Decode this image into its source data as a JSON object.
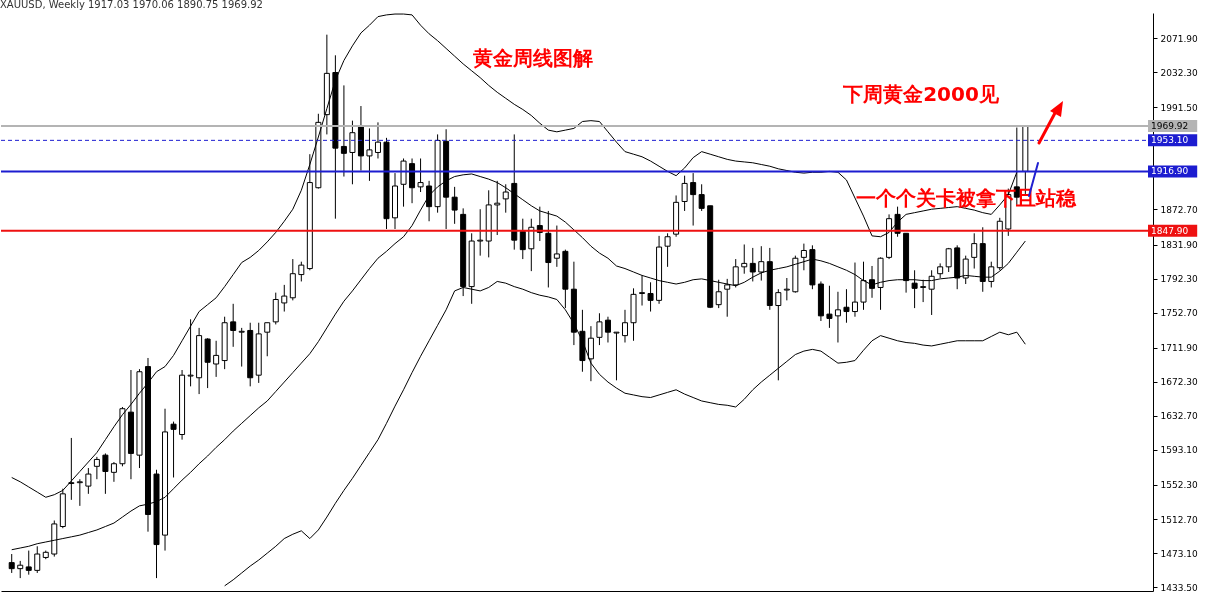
{
  "chart_data": {
    "type": "candlestick",
    "title": "XAUUSD, Weekly  1917.03 1970.06 1890.75 1969.92",
    "categories": [
      null,
      null,
      null,
      null,
      null,
      null,
      null,
      null,
      null,
      null,
      null,
      null,
      null,
      null,
      null,
      null,
      null,
      null,
      null,
      null,
      null,
      null,
      null,
      null,
      null,
      null,
      null,
      null,
      null,
      null,
      null,
      null,
      null,
      null,
      null,
      null,
      null,
      null,
      null,
      null,
      null,
      null,
      null,
      null,
      null,
      null,
      null,
      null,
      null,
      null,
      null,
      null,
      null,
      null,
      null,
      null,
      null,
      null,
      null,
      null,
      null,
      null,
      null,
      null,
      null,
      null,
      null,
      null,
      null,
      null,
      null,
      null,
      null,
      null,
      null,
      null,
      null,
      null,
      null,
      null,
      null,
      null,
      null,
      null,
      null,
      null,
      null,
      null,
      null,
      null,
      null,
      null,
      null,
      null,
      null,
      null,
      null,
      null,
      null,
      null,
      null,
      null,
      null,
      null,
      null,
      null,
      null,
      null,
      null,
      null,
      null,
      null,
      null,
      null,
      null,
      null,
      null,
      null,
      null,
      null
    ],
    "ohlc": [
      [
        1462,
        1472,
        1450,
        1455
      ],
      [
        1455,
        1464,
        1444,
        1459
      ],
      [
        1457,
        1476,
        1448,
        1453
      ],
      [
        1453,
        1481,
        1450,
        1472
      ],
      [
        1468,
        1476,
        1466,
        1474
      ],
      [
        1472,
        1511,
        1469,
        1507
      ],
      [
        1504,
        1548,
        1502,
        1542
      ],
      [
        1554,
        1607,
        1535,
        1555
      ],
      [
        1555,
        1559,
        1528,
        1556
      ],
      [
        1551,
        1572,
        1542,
        1565
      ],
      [
        1574,
        1585,
        1559,
        1582
      ],
      [
        1587,
        1589,
        1542,
        1568
      ],
      [
        1567,
        1579,
        1556,
        1577
      ],
      [
        1577,
        1643,
        1574,
        1641
      ],
      [
        1637,
        1686,
        1559,
        1589
      ],
      [
        1587,
        1687,
        1572,
        1684
      ],
      [
        1690,
        1700,
        1498,
        1518
      ],
      [
        1565,
        1570,
        1444,
        1483
      ],
      [
        1494,
        1641,
        1476,
        1614
      ],
      [
        1623,
        1626,
        1561,
        1617
      ],
      [
        1611,
        1686,
        1605,
        1680
      ],
      [
        1679,
        1745,
        1667,
        1680
      ],
      [
        1677,
        1735,
        1658,
        1726
      ],
      [
        1722,
        1723,
        1665,
        1695
      ],
      [
        1693,
        1720,
        1678,
        1703
      ],
      [
        1697,
        1748,
        1687,
        1741
      ],
      [
        1742,
        1763,
        1713,
        1732
      ],
      [
        1730,
        1735,
        1690,
        1731
      ],
      [
        1732,
        1741,
        1667,
        1677
      ],
      [
        1680,
        1741,
        1671,
        1728
      ],
      [
        1730,
        1741,
        1702,
        1741
      ],
      [
        1742,
        1776,
        1739,
        1768
      ],
      [
        1764,
        1785,
        1754,
        1772
      ],
      [
        1770,
        1815,
        1767,
        1798
      ],
      [
        1797,
        1812,
        1789,
        1808
      ],
      [
        1804,
        1937,
        1802,
        1904
      ],
      [
        1898,
        1984,
        1897,
        1974
      ],
      [
        1983,
        2076,
        1960,
        2031
      ],
      [
        2032,
        2052,
        1862,
        1944
      ],
      [
        1946,
        2017,
        1911,
        1938
      ],
      [
        1939,
        1976,
        1902,
        1962
      ],
      [
        1970,
        1993,
        1918,
        1935
      ],
      [
        1935,
        1967,
        1906,
        1942
      ],
      [
        1939,
        1974,
        1932,
        1951
      ],
      [
        1951,
        1956,
        1850,
        1862
      ],
      [
        1863,
        1915,
        1850,
        1900
      ],
      [
        1902,
        1932,
        1876,
        1929
      ],
      [
        1926,
        1932,
        1880,
        1898
      ],
      [
        1899,
        1932,
        1893,
        1904
      ],
      [
        1900,
        1906,
        1859,
        1876
      ],
      [
        1876,
        1960,
        1869,
        1953
      ],
      [
        1952,
        1966,
        1850,
        1887
      ],
      [
        1887,
        1899,
        1856,
        1872
      ],
      [
        1867,
        1874,
        1772,
        1783
      ],
      [
        1783,
        1845,
        1763,
        1836
      ],
      [
        1836,
        1873,
        1819,
        1837
      ],
      [
        1836,
        1895,
        1817,
        1878
      ],
      [
        1878,
        1906,
        1843,
        1880
      ],
      [
        1885,
        1902,
        1869,
        1893
      ],
      [
        1903,
        1960,
        1826,
        1837
      ],
      [
        1847,
        1862,
        1815,
        1826
      ],
      [
        1827,
        1862,
        1801,
        1852
      ],
      [
        1854,
        1876,
        1836,
        1846
      ],
      [
        1845,
        1871,
        1782,
        1811
      ],
      [
        1816,
        1854,
        1806,
        1821
      ],
      [
        1824,
        1826,
        1758,
        1780
      ],
      [
        1780,
        1812,
        1715,
        1730
      ],
      [
        1731,
        1756,
        1684,
        1697
      ],
      [
        1699,
        1737,
        1673,
        1723
      ],
      [
        1724,
        1752,
        1715,
        1742
      ],
      [
        1744,
        1748,
        1718,
        1730
      ],
      [
        1729,
        1730,
        1674,
        1730
      ],
      [
        1726,
        1756,
        1718,
        1741
      ],
      [
        1741,
        1781,
        1720,
        1774
      ],
      [
        1775,
        1796,
        1761,
        1776
      ],
      [
        1775,
        1788,
        1754,
        1767
      ],
      [
        1767,
        1842,
        1763,
        1829
      ],
      [
        1830,
        1845,
        1806,
        1841
      ],
      [
        1844,
        1889,
        1841,
        1881
      ],
      [
        1882,
        1912,
        1871,
        1903
      ],
      [
        1904,
        1915,
        1854,
        1890
      ],
      [
        1890,
        1902,
        1871,
        1874
      ],
      [
        1877,
        1877,
        1758,
        1759
      ],
      [
        1762,
        1791,
        1758,
        1777
      ],
      [
        1780,
        1792,
        1748,
        1785
      ],
      [
        1785,
        1815,
        1782,
        1806
      ],
      [
        1806,
        1832,
        1798,
        1810
      ],
      [
        1810,
        1828,
        1789,
        1800
      ],
      [
        1800,
        1830,
        1790,
        1812
      ],
      [
        1812,
        1828,
        1756,
        1761
      ],
      [
        1761,
        1780,
        1674,
        1776
      ],
      [
        1779,
        1793,
        1767,
        1780
      ],
      [
        1777,
        1819,
        1776,
        1816
      ],
      [
        1817,
        1833,
        1802,
        1825
      ],
      [
        1826,
        1831,
        1780,
        1785
      ],
      [
        1786,
        1789,
        1743,
        1749
      ],
      [
        1751,
        1784,
        1735,
        1746
      ],
      [
        1749,
        1777,
        1718,
        1756
      ],
      [
        1759,
        1780,
        1741,
        1754
      ],
      [
        1754,
        1811,
        1748,
        1765
      ],
      [
        1765,
        1812,
        1756,
        1790
      ],
      [
        1791,
        1807,
        1770,
        1781
      ],
      [
        1782,
        1817,
        1756,
        1816
      ],
      [
        1817,
        1867,
        1815,
        1862
      ],
      [
        1867,
        1876,
        1841,
        1845
      ],
      [
        1845,
        1845,
        1776,
        1790
      ],
      [
        1787,
        1802,
        1758,
        1781
      ],
      [
        1782,
        1791,
        1765,
        1783
      ],
      [
        1780,
        1802,
        1750,
        1795
      ],
      [
        1798,
        1810,
        1793,
        1806
      ],
      [
        1806,
        1828,
        1800,
        1827
      ],
      [
        1828,
        1831,
        1780,
        1793
      ],
      [
        1793,
        1819,
        1786,
        1815
      ],
      [
        1817,
        1845,
        1804,
        1833
      ],
      [
        1833,
        1852,
        1777,
        1789
      ],
      [
        1789,
        1812,
        1782,
        1806
      ],
      [
        1805,
        1863,
        1802,
        1859
      ],
      [
        1850,
        1897,
        1842,
        1890
      ],
      [
        1899,
        1968,
        1878,
        1887
      ],
      [
        1917.03,
        1970.06,
        1890.75,
        1969.92
      ]
    ],
    "series": [
      {
        "type": "line",
        "color": "#000000",
        "values": [
          1561,
          1556,
          1550,
          1544,
          1538,
          1541,
          1546,
          1557,
          1568,
          1579,
          1590,
          1605,
          1620,
          1634,
          1646,
          1659,
          1671,
          1684,
          1690,
          1703,
          1720,
          1737,
          1754,
          1762,
          1770,
          1783,
          1797,
          1811,
          1817,
          1825,
          1835,
          1846,
          1859,
          1873,
          1895,
          1925,
          1957,
          1990,
          2023,
          2046,
          2063,
          2078,
          2087,
          2097,
          2099,
          2100,
          2100,
          2099,
          2087,
          2077,
          2069,
          2060,
          2051,
          2042,
          2034,
          2026,
          2017,
          2009,
          2002,
          1995,
          1989,
          1982,
          1973,
          1965,
          1963,
          1965,
          1967,
          1975,
          1976,
          1975,
          1963,
          1951,
          1940,
          1937,
          1934,
          1929,
          1923,
          1917,
          1912,
          1921,
          1933,
          1940,
          1937,
          1934,
          1931,
          1929,
          1928,
          1927,
          1925,
          1923,
          1920,
          1918,
          1916,
          1915,
          1916,
          1916,
          1917,
          1916,
          1907,
          1886,
          1865,
          1842,
          1841,
          1846,
          1858,
          1867,
          1869,
          1871,
          1873,
          1874,
          1875,
          1876,
          1874,
          1872,
          1869,
          1867,
          1878,
          1890,
          1916,
          null
        ]
      },
      {
        "type": "line",
        "color": "#000000",
        "values": [
          1477,
          1479,
          1481,
          1484,
          1486,
          1488,
          1490,
          1492,
          1494,
          1497,
          1500,
          1504,
          1508,
          1515,
          1522,
          1528,
          1530,
          1533,
          1538,
          1548,
          1558,
          1567,
          1577,
          1586,
          1596,
          1605,
          1615,
          1624,
          1633,
          1642,
          1650,
          1661,
          1672,
          1683,
          1694,
          1705,
          1719,
          1735,
          1751,
          1766,
          1778,
          1791,
          1804,
          1816,
          1824,
          1833,
          1841,
          1854,
          1872,
          1889,
          1899,
          1906,
          1911,
          1913,
          1914,
          1911,
          1908,
          1904,
          1898,
          1891,
          1884,
          1877,
          1871,
          1868,
          1865,
          1858,
          1849,
          1840,
          1830,
          1822,
          1816,
          1807,
          1804,
          1800,
          1796,
          1793,
          1790,
          1788,
          1786,
          1788,
          1791,
          1792,
          1790,
          1788,
          1786,
          1784,
          1788,
          1794,
          1799,
          1802,
          1804,
          1806,
          1809,
          1812,
          1815,
          1813,
          1810,
          1806,
          1802,
          1797,
          1790,
          1785,
          1788,
          1790,
          1791,
          1791,
          1791,
          1790,
          1790,
          1792,
          1793,
          1794,
          1796,
          1795,
          1794,
          1794,
          1801,
          1810,
          1823,
          1836
        ]
      },
      {
        "type": "line",
        "color": "#000000",
        "values": [
          null,
          null,
          null,
          null,
          null,
          null,
          null,
          null,
          null,
          null,
          null,
          null,
          null,
          null,
          null,
          null,
          null,
          null,
          null,
          null,
          null,
          null,
          null,
          null,
          null,
          1435,
          1442,
          1450,
          1458,
          1465,
          1473,
          1481,
          1490,
          1495,
          1499,
          1490,
          1500,
          1515,
          1531,
          1546,
          1560,
          1575,
          1590,
          1605,
          1624,
          1644,
          1663,
          1683,
          1702,
          1720,
          1738,
          1756,
          1778,
          1782,
          1780,
          1778,
          1782,
          1789,
          1787,
          1783,
          1780,
          1776,
          1773,
          1771,
          1768,
          1756,
          1740,
          1720,
          1694,
          1681,
          1672,
          1665,
          1659,
          1657,
          1655,
          1654,
          1657,
          1660,
          1663,
          1658,
          1654,
          1650,
          1648,
          1646,
          1645,
          1643,
          1652,
          1663,
          1672,
          1680,
          1688,
          1696,
          1704,
          1708,
          1710,
          1708,
          1701,
          1694,
          1695,
          1697,
          1709,
          1720,
          1726,
          1723,
          1720,
          1718,
          1717,
          1715,
          1714,
          1716,
          1718,
          1720,
          1720,
          1720,
          1720,
          1725,
          1730,
          1727,
          1730,
          1716
        ]
      }
    ],
    "ylim": [
      1429,
      2101.2
    ],
    "yticks": [
      {
        "value": 1433.5,
        "label": "1433.50"
      },
      {
        "value": 1473.1,
        "label": "1473.10"
      },
      {
        "value": 1512.7,
        "label": "1512.70"
      },
      {
        "value": 1552.3,
        "label": "1552.30"
      },
      {
        "value": 1593.1,
        "label": "1593.10"
      },
      {
        "value": 1632.7,
        "label": "1632.70"
      },
      {
        "value": 1672.3,
        "label": "1672.30"
      },
      {
        "value": 1711.9,
        "label": "1711.90"
      },
      {
        "value": 1752.7,
        "label": "1752.70"
      },
      {
        "value": 1792.3,
        "label": "1792.30"
      },
      {
        "value": 1831.9,
        "label": "1831.90"
      },
      {
        "value": 1872.7,
        "label": "1872.70"
      },
      {
        "value": 1991.5,
        "label": "1991.50"
      },
      {
        "value": 2032.3,
        "label": "2032.30"
      },
      {
        "value": 2071.9,
        "label": "2071.90"
      }
    ],
    "ref_lines": [
      {
        "axis": "y",
        "value": 1969.92,
        "label": "1969.92",
        "color": "#b4b4b4"
      },
      {
        "axis": "y",
        "value": 1953.1,
        "label": "1953.10",
        "color": "#1c1cd0",
        "line_style": "dashed"
      },
      {
        "axis": "y",
        "value": 1916.9,
        "label": "1916.90",
        "color": "#1c1cd0"
      },
      {
        "axis": "y",
        "value": 1847.9,
        "label": "1847.90",
        "color": "#ee1111"
      }
    ],
    "annotations": [
      "黄金周线图解",
      "下周黄金2000见",
      "一个个关卡被拿下且站稳"
    ],
    "tick_labels": "y",
    "grid": false,
    "marker": "none"
  }
}
